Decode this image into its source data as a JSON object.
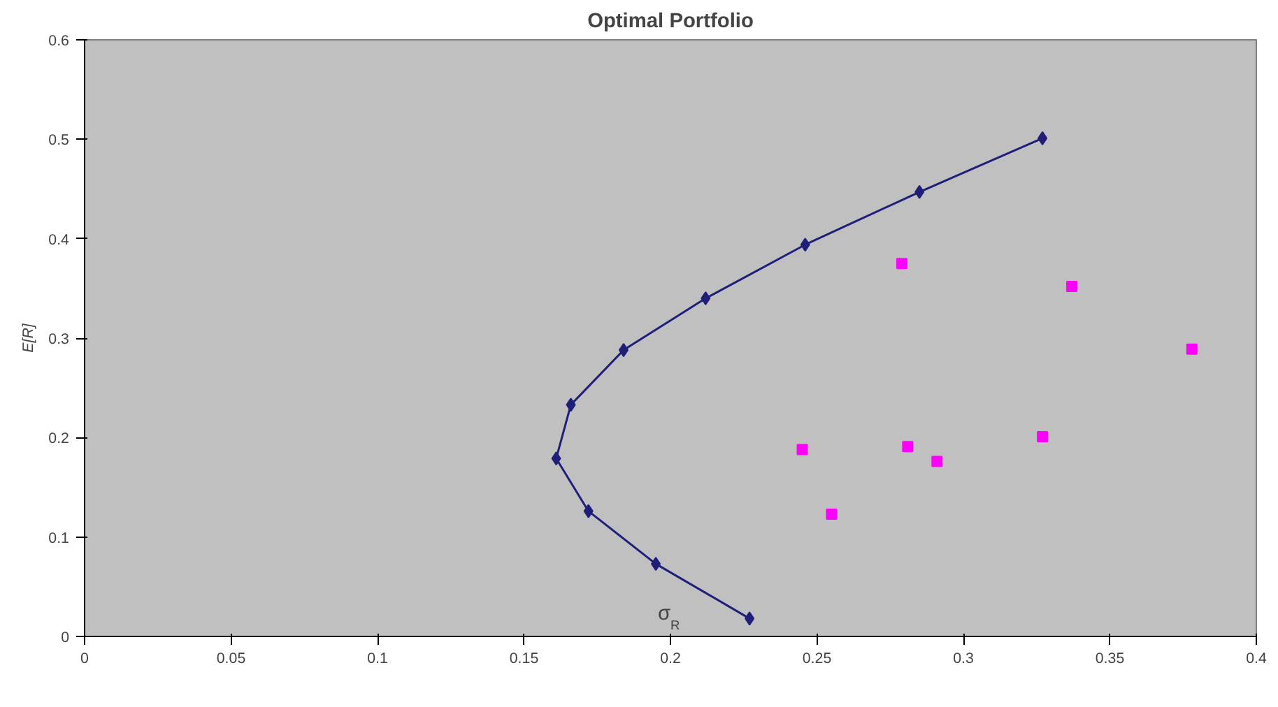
{
  "chart_data": {
    "type": "scatter",
    "title": "Optimal Portfolio",
    "xlabel": "σ$_{R}$",
    "ylabel": "E[R]",
    "xlim": [
      0,
      0.4
    ],
    "xticks": [
      0,
      0.05,
      0.1,
      0.15,
      0.2,
      0.25,
      0.3,
      0.35,
      0.4
    ],
    "ylim": [
      0,
      0.6
    ],
    "yticks": [
      0,
      0.1,
      0.2,
      0.3,
      0.4,
      0.5,
      0.6
    ],
    "grid": false,
    "series": [
      {
        "type": "line",
        "color": "#1f1f7a",
        "marker": "diamond",
        "x": [
          0.227,
          0.195,
          0.172,
          0.161,
          0.166,
          0.184,
          0.212,
          0.246,
          0.285,
          0.327
        ],
        "values": [
          0.018,
          0.073,
          0.126,
          0.179,
          0.233,
          0.288,
          0.34,
          0.394,
          0.447,
          0.501
        ]
      },
      {
        "type": "scatter",
        "color": "#ff00ff",
        "marker": "square",
        "x": [
          0.279,
          0.337,
          0.378,
          0.245,
          0.281,
          0.291,
          0.327,
          0.255
        ],
        "values": [
          0.375,
          0.352,
          0.289,
          0.188,
          0.191,
          0.176,
          0.201,
          0.123
        ]
      }
    ]
  }
}
